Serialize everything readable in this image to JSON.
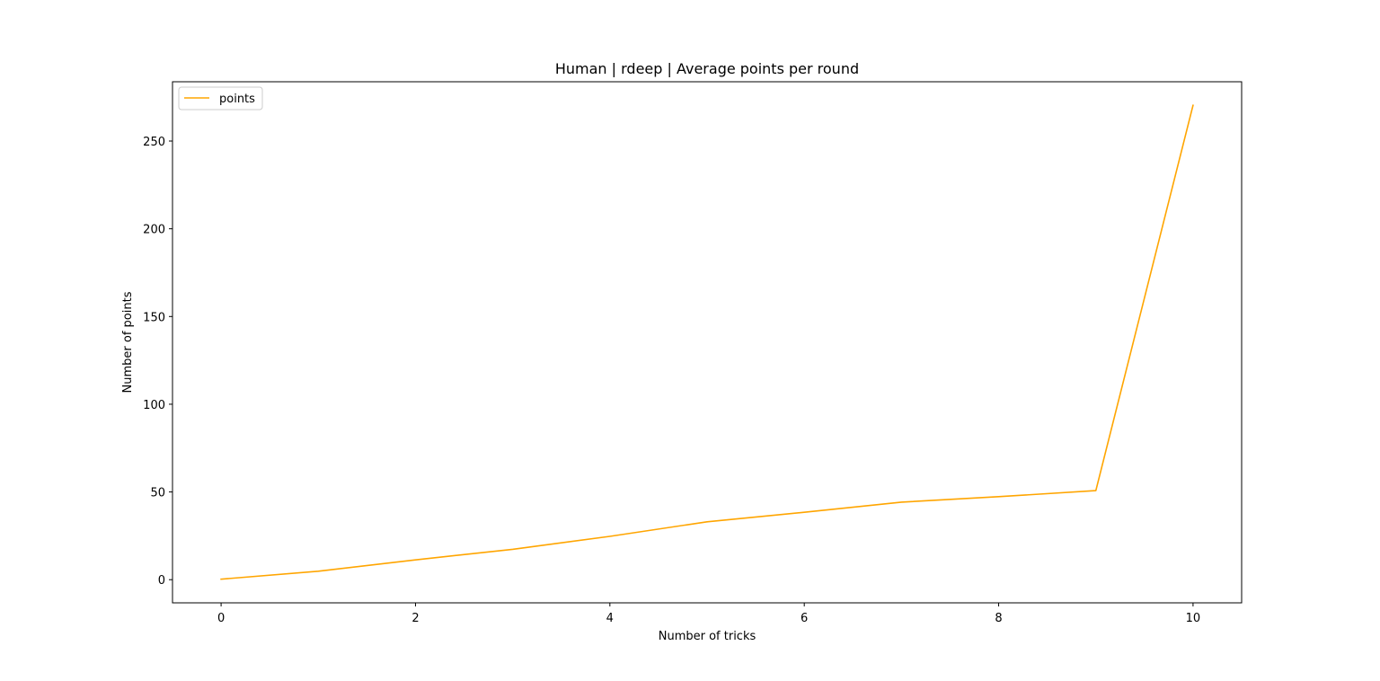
{
  "chart_data": {
    "type": "line",
    "title": "Human | rdeep | Average points per round",
    "xlabel": "Number of tricks",
    "ylabel": "Number of points",
    "x": [
      0,
      1,
      2,
      3,
      4,
      5,
      6,
      7,
      8,
      9,
      10
    ],
    "series": [
      {
        "name": "points",
        "color": "#ffa500",
        "values": [
          0.3,
          4.8,
          11.3,
          17.3,
          24.7,
          33.0,
          38.4,
          44.2,
          47.3,
          50.8,
          270.4
        ]
      }
    ],
    "xlim": [
      -0.5,
      10.5
    ],
    "ylim": [
      -13.2,
      283.8
    ],
    "xticks": [
      0,
      2,
      4,
      6,
      8,
      10
    ],
    "yticks": [
      0,
      50,
      100,
      150,
      200,
      250
    ],
    "xtick_labels": [
      "0",
      "2",
      "4",
      "6",
      "8",
      "10"
    ],
    "ytick_labels": [
      "0",
      "50",
      "100",
      "150",
      "200",
      "250"
    ],
    "grid": false,
    "legend_position": "upper left"
  }
}
